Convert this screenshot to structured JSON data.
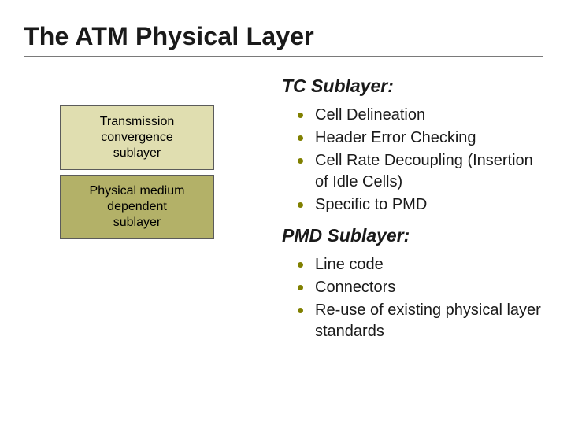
{
  "title": "The ATM Physical Layer",
  "bullet_color": "#808000",
  "box": {
    "top": {
      "line1": "Transmission",
      "line2": "convergence",
      "line3": "sublayer",
      "bg": "#e0deb0",
      "border": "#5b5b5b"
    },
    "bottom": {
      "line1": "Physical medium",
      "line2": "dependent",
      "line3": "sublayer",
      "bg": "#b3b168",
      "border": "#5b5b5b"
    }
  },
  "sections": {
    "tc": {
      "heading": "TC Sublayer:",
      "items": [
        "Cell Delineation",
        "Header Error Checking",
        "Cell Rate Decoupling (Insertion of Idle Cells)",
        "Specific to PMD"
      ]
    },
    "pmd": {
      "heading": "PMD Sublayer:",
      "items": [
        "Line code",
        "Connectors",
        "Re-use of existing physical layer standards"
      ]
    }
  }
}
